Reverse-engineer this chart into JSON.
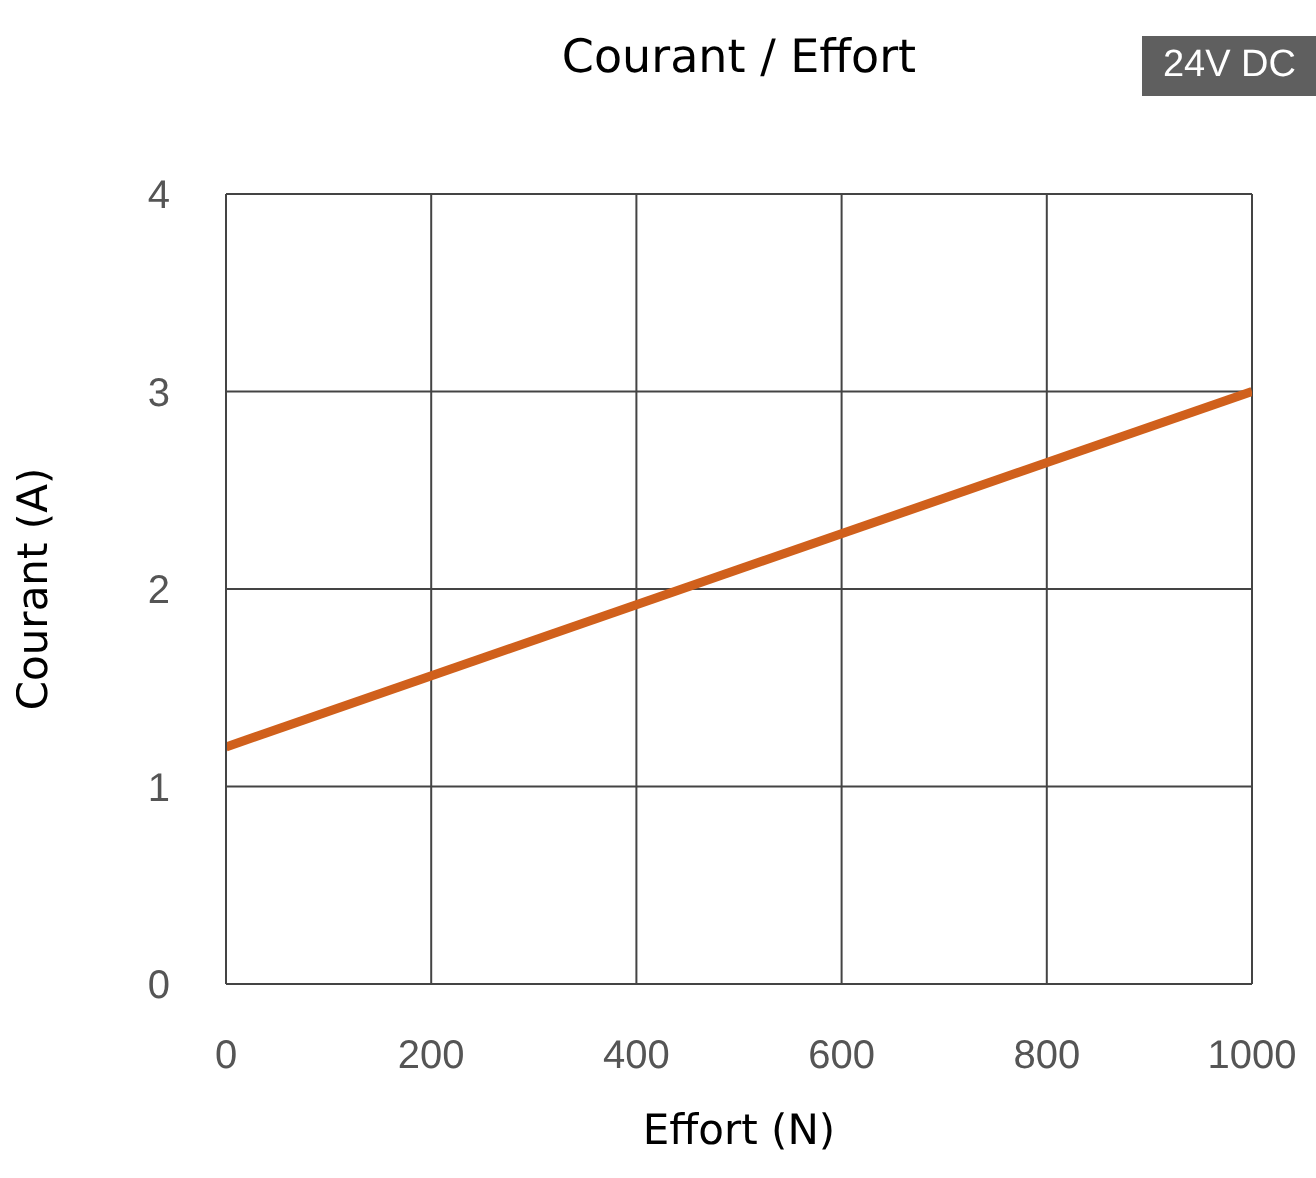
{
  "chart_data": {
    "type": "line",
    "title": "Courant / Effort",
    "xlabel": "Effort (N)",
    "ylabel": "Courant (A)",
    "annotations": [
      "24V DC"
    ],
    "x": [
      0,
      1000
    ],
    "series": [
      {
        "color": "#d0601c",
        "values": [
          1.2,
          3.0
        ]
      }
    ],
    "xlim": [
      0,
      1000
    ],
    "xticks": [
      0,
      200,
      400,
      600,
      800,
      1000
    ],
    "ylim": [
      0,
      4
    ],
    "yticks": [
      0,
      1,
      2,
      3,
      4
    ],
    "grid": true,
    "legend": false,
    "marker": "none",
    "line_style": "solid"
  }
}
